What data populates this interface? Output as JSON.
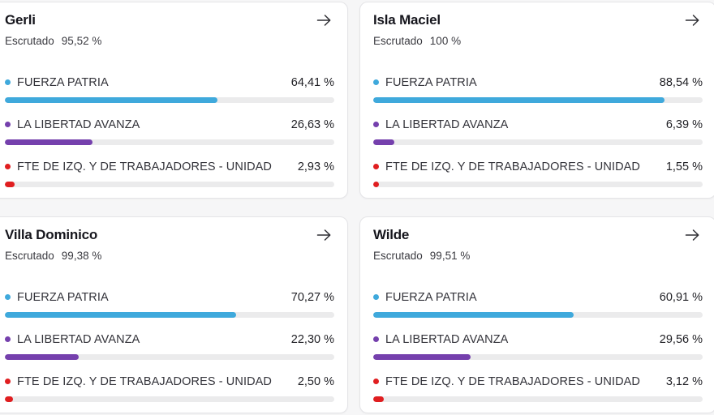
{
  "theme": {
    "page_bg": "#F6F6F7",
    "card_bg": "#FFFFFF",
    "card_border": "#E4E4E7",
    "track_color": "#EBEBEC",
    "blue": "#3FA9DC",
    "purple": "#7540AD",
    "red": "#E01E20"
  },
  "cards": [
    {
      "title": "Gerli",
      "escrutado_label": "Escrutado",
      "escrutado_value": "95,52 %",
      "arrow_icon": "right-arrow",
      "parties": [
        {
          "name": "FUERZA PATRIA",
          "value_label": "64,41 %",
          "percent": 64.41,
          "color": "#3FA9DC"
        },
        {
          "name": "LA LIBERTAD AVANZA",
          "value_label": "26,63 %",
          "percent": 26.63,
          "color": "#7540AD"
        },
        {
          "name": "FTE DE IZQ. Y DE TRABAJADORES - UNIDAD",
          "value_label": "2,93 %",
          "percent": 2.93,
          "color": "#E01E20"
        }
      ]
    },
    {
      "title": "Isla Maciel",
      "escrutado_label": "Escrutado",
      "escrutado_value": "100 %",
      "arrow_icon": "right-arrow",
      "parties": [
        {
          "name": "FUERZA PATRIA",
          "value_label": "88,54 %",
          "percent": 88.54,
          "color": "#3FA9DC"
        },
        {
          "name": "LA LIBERTAD AVANZA",
          "value_label": "6,39 %",
          "percent": 6.39,
          "color": "#7540AD"
        },
        {
          "name": "FTE DE IZQ. Y DE TRABAJADORES - UNIDAD",
          "value_label": "1,55 %",
          "percent": 1.55,
          "color": "#E01E20"
        }
      ]
    },
    {
      "title": "Villa Dominico",
      "escrutado_label": "Escrutado",
      "escrutado_value": "99,38 %",
      "arrow_icon": "right-arrow",
      "parties": [
        {
          "name": "FUERZA PATRIA",
          "value_label": "70,27 %",
          "percent": 70.27,
          "color": "#3FA9DC"
        },
        {
          "name": "LA LIBERTAD AVANZA",
          "value_label": "22,30 %",
          "percent": 22.3,
          "color": "#7540AD"
        },
        {
          "name": "FTE DE IZQ. Y DE TRABAJADORES - UNIDAD",
          "value_label": "2,50 %",
          "percent": 2.5,
          "color": "#E01E20"
        }
      ]
    },
    {
      "title": "Wilde",
      "escrutado_label": "Escrutado",
      "escrutado_value": "99,51 %",
      "arrow_icon": "right-arrow",
      "parties": [
        {
          "name": "FUERZA PATRIA",
          "value_label": "60,91 %",
          "percent": 60.91,
          "color": "#3FA9DC"
        },
        {
          "name": "LA LIBERTAD AVANZA",
          "value_label": "29,56 %",
          "percent": 29.56,
          "color": "#7540AD"
        },
        {
          "name": "FTE DE IZQ. Y DE TRABAJADORES - UNIDAD",
          "value_label": "3,12 %",
          "percent": 3.12,
          "color": "#E01E20"
        }
      ]
    }
  ],
  "chart_data": {
    "type": "bar",
    "note": "horizontal progress bars per locality, values are vote percentages",
    "categories": [
      "FUERZA PATRIA",
      "LA LIBERTAD AVANZA",
      "FTE DE IZQ. Y DE TRABAJADORES - UNIDAD"
    ],
    "series": [
      {
        "name": "Gerli",
        "escrutado": 95.52,
        "values": [
          64.41,
          26.63,
          2.93
        ]
      },
      {
        "name": "Isla Maciel",
        "escrutado": 100,
        "values": [
          88.54,
          6.39,
          1.55
        ]
      },
      {
        "name": "Villa Dominico",
        "escrutado": 99.38,
        "values": [
          70.27,
          22.3,
          2.5
        ]
      },
      {
        "name": "Wilde",
        "escrutado": 99.51,
        "values": [
          60.91,
          29.56,
          3.12
        ]
      }
    ],
    "xlim": [
      0,
      100
    ]
  }
}
